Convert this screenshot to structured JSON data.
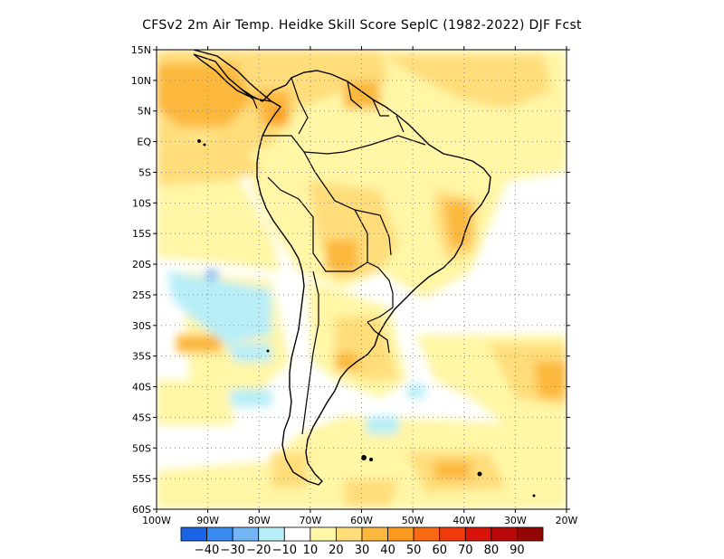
{
  "title": "CFSv2  2m Air Temp. Heidke Skill Score SeplC (1982-2022) DJF Fcst",
  "lat_labels": [
    "15N",
    "10N",
    "5N",
    "EQ",
    "5S",
    "10S",
    "15S",
    "20S",
    "25S",
    "30S",
    "35S",
    "40S",
    "45S",
    "50S",
    "55S",
    "60S"
  ],
  "lon_labels": [
    "100W",
    "90W",
    "80W",
    "70W",
    "60W",
    "50W",
    "40W",
    "30W",
    "20W"
  ],
  "colorbar": {
    "labels": [
      "-40",
      "-30",
      "-20",
      "-10",
      "10",
      "20",
      "30",
      "40",
      "50",
      "60",
      "70",
      "80",
      "90"
    ],
    "colors": [
      "#1c64e6",
      "#3a8bf0",
      "#74b5f5",
      "#b8eef8",
      "#ffffff",
      "#fff6a6",
      "#ffdd7a",
      "#fcb83e",
      "#fb9a1e",
      "#f86a14",
      "#f03a0c",
      "#d8140a",
      "#b80808",
      "#920606"
    ]
  },
  "map": {
    "lon_range": [
      -100,
      -20
    ],
    "lat_range": [
      -60,
      15
    ],
    "background_color": "#ffffff"
  }
}
